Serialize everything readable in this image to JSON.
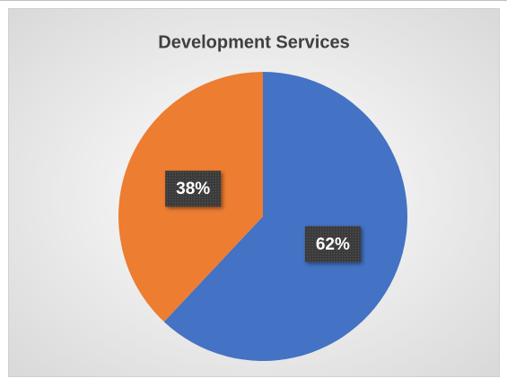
{
  "chart_data": {
    "type": "pie",
    "title": "Development Services",
    "values": [
      62,
      38
    ],
    "value_labels": [
      "62%",
      "38%"
    ],
    "colors": [
      "#4472c4",
      "#ed7d31"
    ]
  }
}
